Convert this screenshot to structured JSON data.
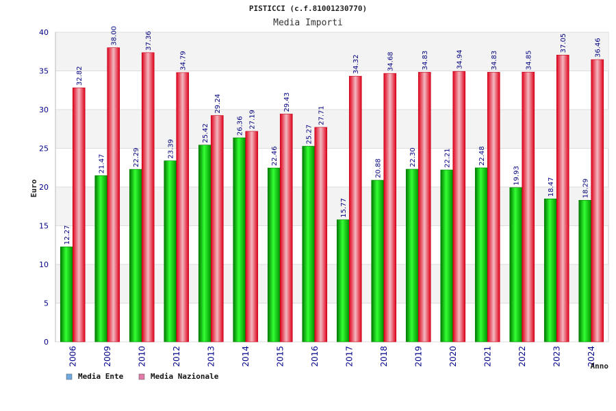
{
  "chart_data": {
    "type": "bar",
    "title": "PISTICCI (c.f.81001230770)",
    "subtitle": "Media Importi",
    "xlabel": "Anno",
    "ylabel": "Euro",
    "ylim": [
      0,
      40
    ],
    "yticks": [
      0,
      5,
      10,
      15,
      20,
      25,
      30,
      35,
      40
    ],
    "categories": [
      "2006",
      "2009",
      "2010",
      "2012",
      "2013",
      "2014",
      "2015",
      "2016",
      "2017",
      "2018",
      "2019",
      "2020",
      "2021",
      "2022",
      "2023",
      "2024"
    ],
    "series": [
      {
        "name": "Media Ente",
        "color": "#00c000",
        "legend_color": "#6fa8e0",
        "values": [
          12.27,
          21.47,
          22.29,
          23.39,
          25.42,
          26.36,
          22.46,
          25.27,
          15.77,
          20.88,
          22.3,
          22.21,
          22.48,
          19.93,
          18.47,
          18.29
        ],
        "labels": [
          "12.27",
          "21.47",
          "22.29",
          "23.39",
          "25.42",
          "26.36",
          "22.46",
          "25.27",
          "15.77",
          "20.88",
          "22.30",
          "22.21",
          "22.48",
          "19.93",
          "18.47",
          "18.29"
        ]
      },
      {
        "name": "Media Nazionale",
        "color": "#e0001a",
        "legend_color": "#e07aa8",
        "values": [
          32.82,
          38.0,
          37.36,
          34.79,
          29.24,
          27.19,
          29.43,
          27.71,
          34.32,
          34.68,
          34.83,
          34.94,
          34.83,
          34.85,
          37.05,
          36.46
        ],
        "labels": [
          "32.82",
          "38.00",
          "37.36",
          "34.79",
          "29.24",
          "27.19",
          "29.43",
          "27.71",
          "34.32",
          "34.68",
          "34.83",
          "34.94",
          "34.83",
          "34.85",
          "37.05",
          "36.46"
        ]
      }
    ],
    "grid": true,
    "legend": "bottom-left"
  }
}
